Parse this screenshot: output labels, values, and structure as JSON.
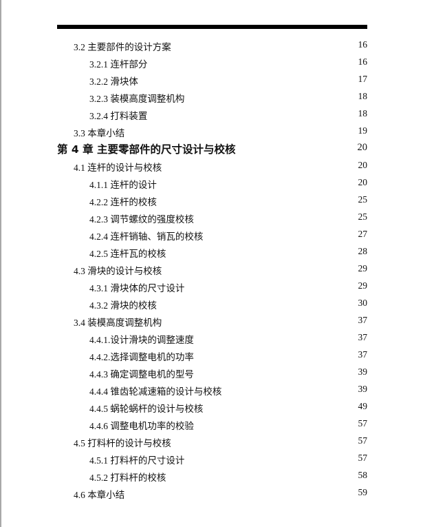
{
  "toc": [
    {
      "level": 2,
      "title": "3.2 主要部件的设计方案",
      "page": "16"
    },
    {
      "level": 3,
      "title": "3.2.1 连杆部分",
      "page": "16"
    },
    {
      "level": 3,
      "title": "3.2.2 滑块体",
      "page": "17"
    },
    {
      "level": 3,
      "title": "3.2.3 装模高度调整机构",
      "page": "18"
    },
    {
      "level": 3,
      "title": "3.2.4 打料装置",
      "page": "18"
    },
    {
      "level": 2,
      "title": "3.3 本章小结",
      "page": "19"
    },
    {
      "level": 1,
      "title": "第 4 章 主要零部件的尺寸设计与校核",
      "page": "20"
    },
    {
      "level": 2,
      "title": "4.1 连杆的设计与校核",
      "page": "20"
    },
    {
      "level": 3,
      "title": "4.1.1 连杆的设计",
      "page": "20"
    },
    {
      "level": 3,
      "title": "4.2.2 连杆的校核",
      "page": "25"
    },
    {
      "level": 3,
      "title": "4.2.3 调节螺纹的强度校核",
      "page": "25"
    },
    {
      "level": 3,
      "title": "4.2.4 连杆销轴、销瓦的校核",
      "page": "27"
    },
    {
      "level": 3,
      "title": "4.2.5 连杆瓦的校核",
      "page": "28"
    },
    {
      "level": 2,
      "title": "4.3 滑块的设计与校核",
      "page": "29"
    },
    {
      "level": 3,
      "title": "4.3.1 滑块体的尺寸设计",
      "page": "29"
    },
    {
      "level": 3,
      "title": "4.3.2 滑块的校核",
      "page": "30"
    },
    {
      "level": 2,
      "title": "3.4 装模高度调整机构",
      "page": "37"
    },
    {
      "level": 3,
      "title": "4.4.1.设计滑块的调整速度",
      "page": "37"
    },
    {
      "level": 3,
      "title": "4.4.2.选择调整电机的功率",
      "page": "37"
    },
    {
      "level": 3,
      "title": "4.4.3 确定调整电机的型号",
      "page": "39"
    },
    {
      "level": 3,
      "title": "4.4.4 锥齿轮减速箱的设计与校核",
      "page": "39"
    },
    {
      "level": 3,
      "title": "4.4.5 蜗轮蜗杆的设计与校核",
      "page": "49"
    },
    {
      "level": 3,
      "title": "4.4.6 调整电机功率的校验",
      "page": "57"
    },
    {
      "level": 2,
      "title": "4.5 打料杆的设计与校核",
      "page": "57"
    },
    {
      "level": 3,
      "title": "4.5.1 打料杆的尺寸设计",
      "page": "57"
    },
    {
      "level": 3,
      "title": "4.5.2 打料杆的校核",
      "page": "58"
    },
    {
      "level": 2,
      "title": "4.6 本章小结",
      "page": "59"
    }
  ]
}
